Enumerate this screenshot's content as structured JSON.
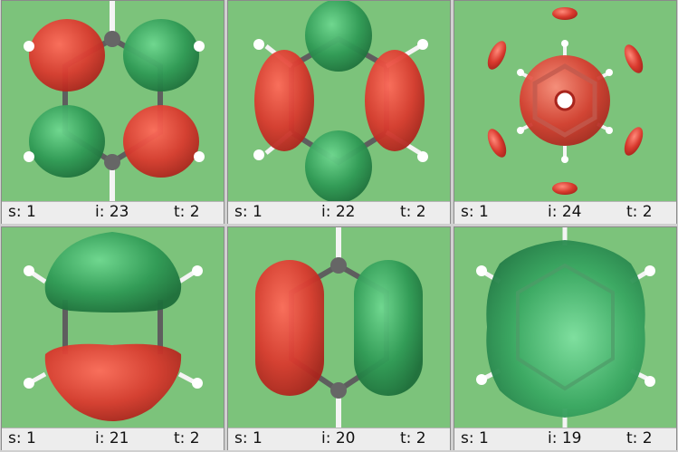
{
  "panels": [
    {
      "s": "s: 1",
      "i": "i: 23",
      "t": "t: 2"
    },
    {
      "s": "s: 1",
      "i": "i: 22",
      "t": "t: 2"
    },
    {
      "s": "s: 1",
      "i": "i: 24",
      "t": "t: 2"
    },
    {
      "s": "s: 1",
      "i": "i: 21",
      "t": "t: 2"
    },
    {
      "s": "s: 1",
      "i": "i: 20",
      "t": "t: 2"
    },
    {
      "s": "s: 1",
      "i": "i: 19",
      "t": "t: 2"
    }
  ],
  "colors": {
    "background": "#7cc37b",
    "lobe_red": "#d93a2e",
    "lobe_green": "#2f9a55",
    "bond": "#606060",
    "hydrogen": "#ffffff",
    "status_bar": "#ededed"
  }
}
